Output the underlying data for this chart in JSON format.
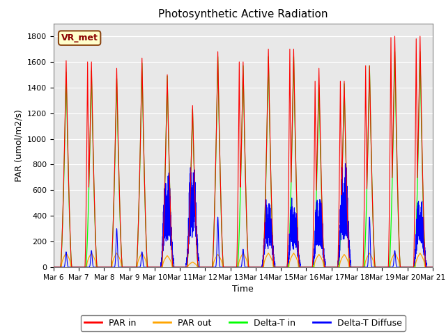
{
  "title": "Photosynthetic Active Radiation",
  "ylabel": "PAR (umol/m2/s)",
  "xlabel": "Time",
  "legend_labels": [
    "PAR in",
    "PAR out",
    "Delta-T in",
    "Delta-T Diffuse"
  ],
  "legend_colors": [
    "red",
    "orange",
    "lime",
    "blue"
  ],
  "xticklabels": [
    "Mar 6",
    "Mar 7",
    "Mar 8",
    "Mar 9",
    "Mar 10",
    "Mar 11",
    "Mar 12",
    "Mar 13",
    "Mar 14",
    "Mar 15",
    "Mar 16",
    "Mar 17",
    "Mar 18",
    "Mar 19",
    "Mar 20",
    "Mar 21"
  ],
  "yticks": [
    0,
    200,
    400,
    600,
    800,
    1000,
    1200,
    1400,
    1600,
    1800
  ],
  "ylim": [
    0,
    1900
  ],
  "bg_color": "#e8e8e8",
  "annotation_text": "VR_met",
  "annotation_bg": "#ffffcc",
  "annotation_border": "#8B4513",
  "par_in_peaks": [
    1610,
    1600,
    1550,
    1630,
    1500,
    1260,
    1680,
    1600,
    1700,
    1700,
    1550,
    1450,
    1570,
    1800,
    1800
  ],
  "par_in_peaks2": [
    0,
    1600,
    0,
    0,
    0,
    0,
    0,
    1600,
    0,
    1700,
    1450,
    1450,
    1570,
    1790,
    1780
  ],
  "par_out_peaks": [
    110,
    110,
    110,
    110,
    90,
    40,
    100,
    110,
    110,
    110,
    100,
    100,
    110,
    110,
    110
  ],
  "delta_t_peaks": [
    1520,
    1530,
    1470,
    1590,
    1490,
    1230,
    1640,
    1570,
    1640,
    1640,
    1420,
    1430,
    1570,
    1680,
    1680
  ],
  "delta_diff_peaks": [
    120,
    130,
    300,
    120,
    760,
    800,
    390,
    140,
    540,
    550,
    560,
    820,
    390,
    130,
    540
  ]
}
